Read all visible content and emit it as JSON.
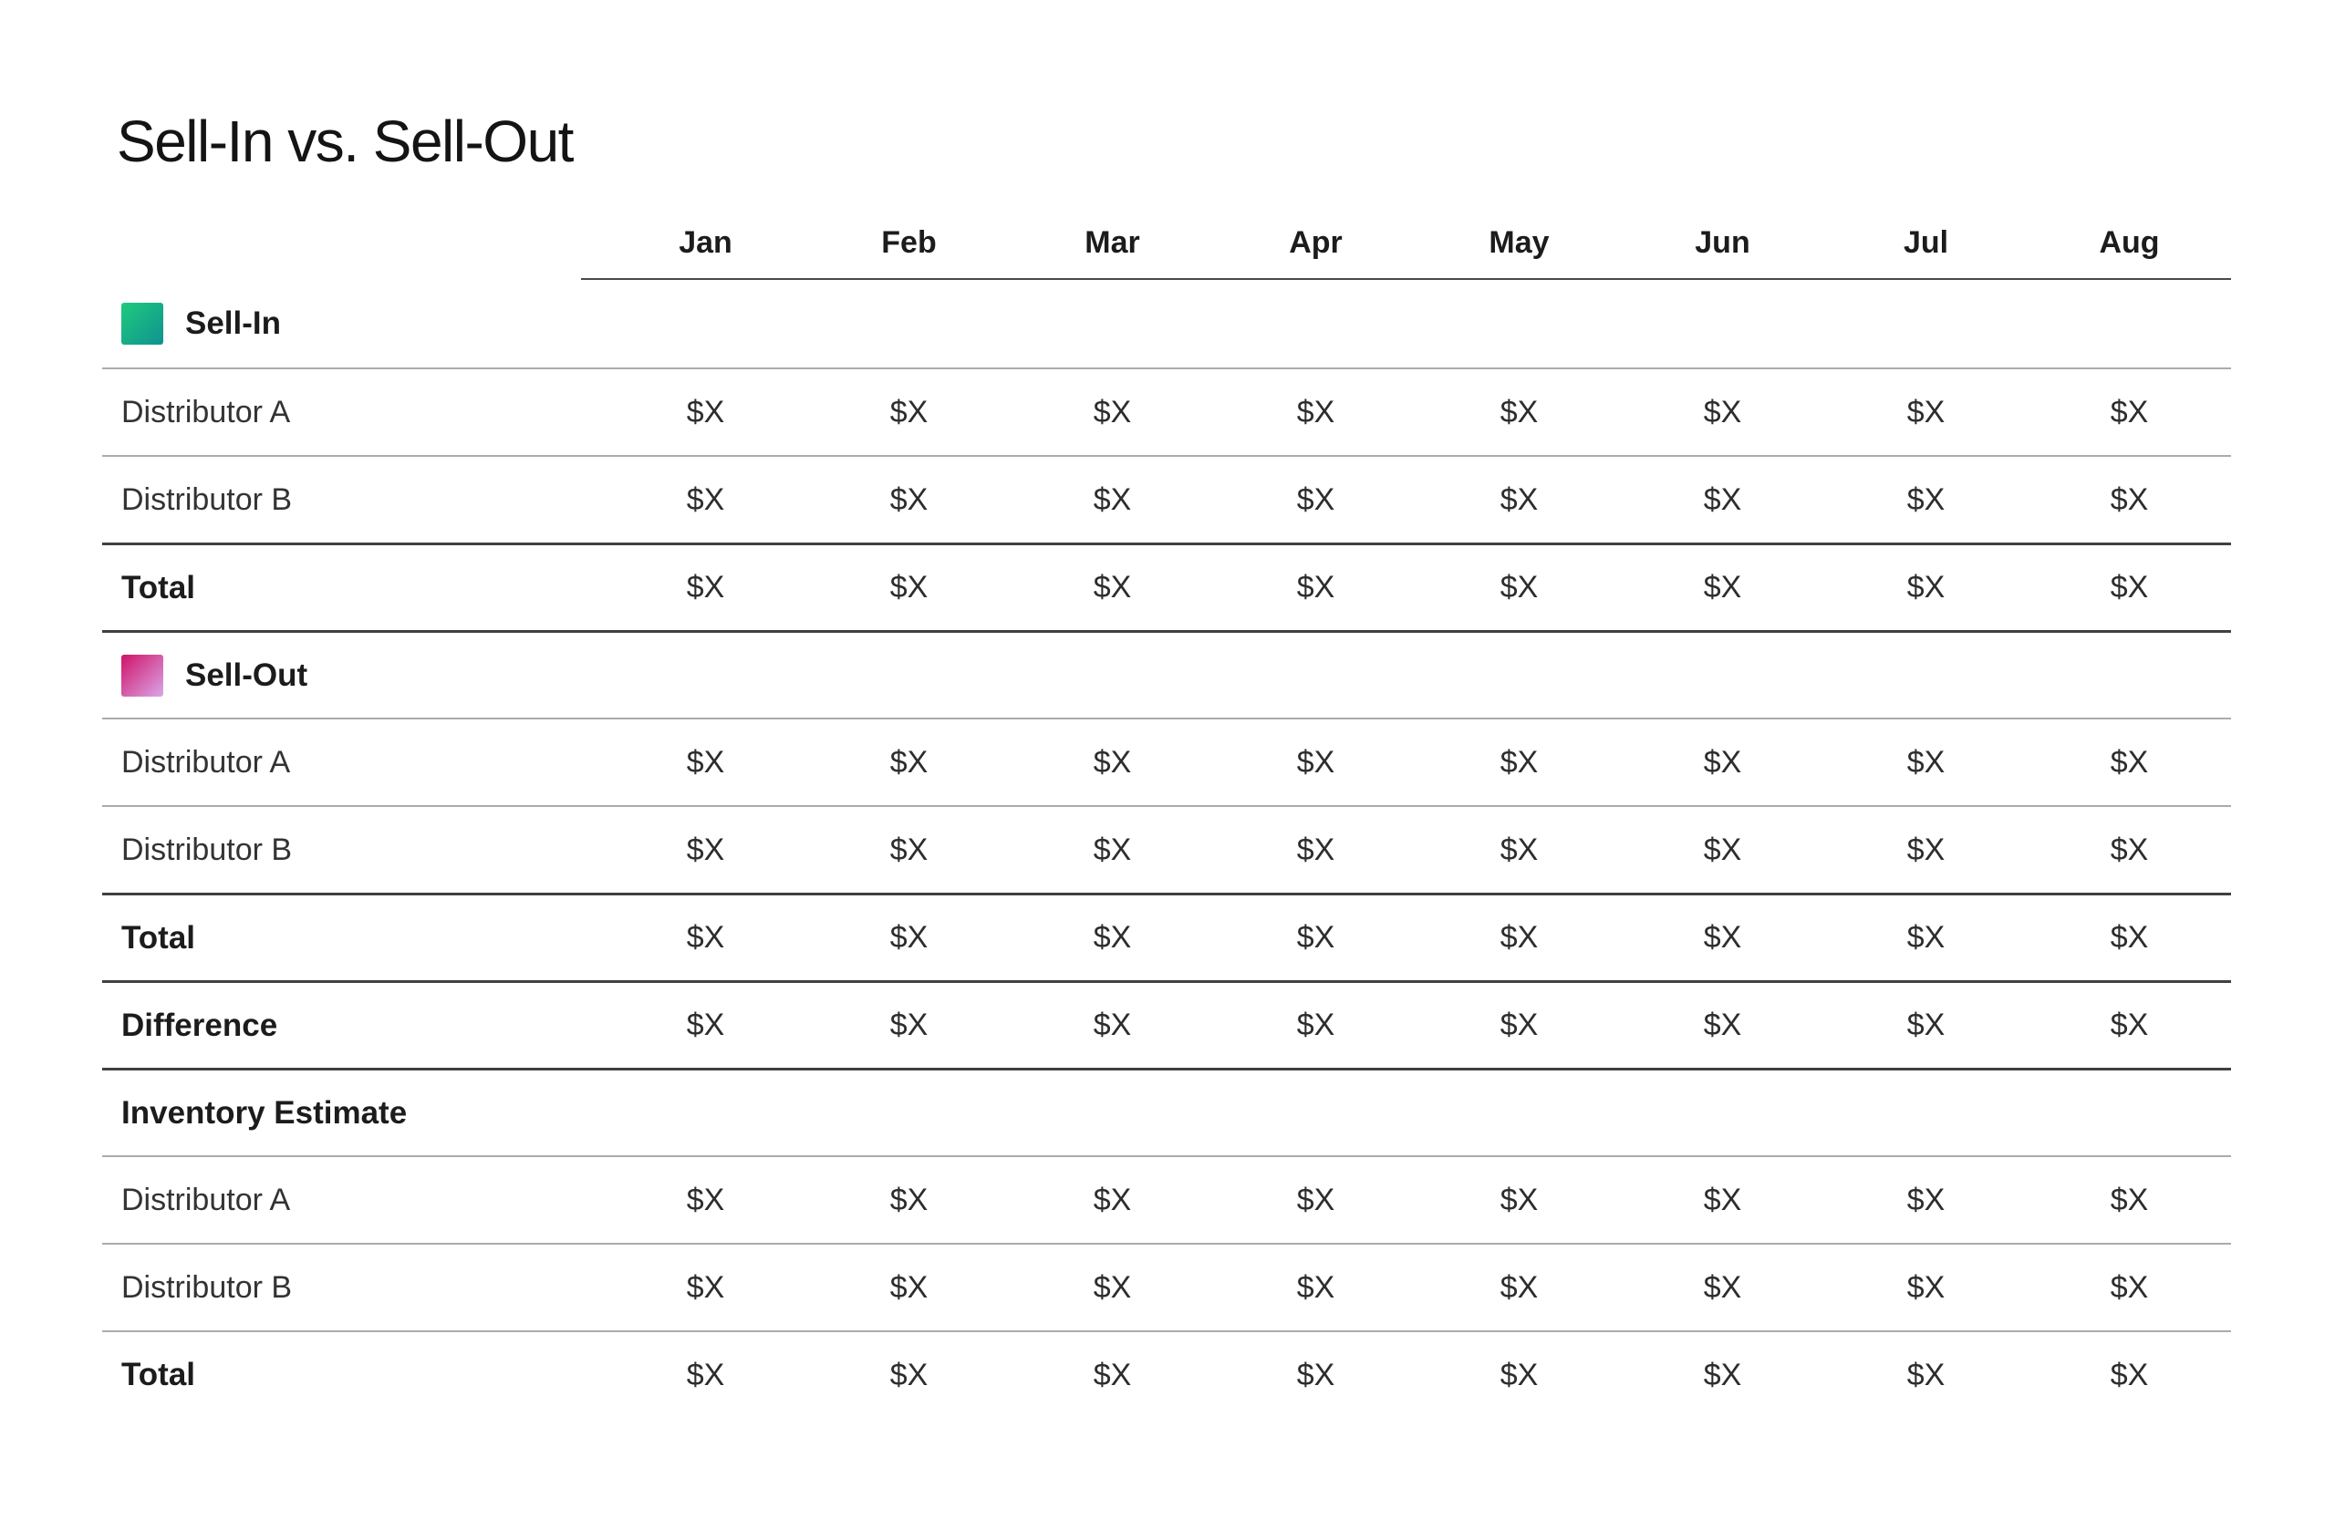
{
  "title": "Sell-In vs. Sell-Out",
  "months": [
    "Jan",
    "Feb",
    "Mar",
    "Apr",
    "May",
    "Jun",
    "Jul",
    "Aug"
  ],
  "value_placeholder": "$X",
  "colors": {
    "sell_in_gradient_start": "#1fca7e",
    "sell_in_gradient_end": "#0f9290",
    "sell_out_gradient_start": "#d01268",
    "sell_out_gradient_end": "#d9a7e8",
    "rule_light": "#ababab",
    "rule_dark": "#404040"
  },
  "table": {
    "rows": [
      {
        "kind": "legend",
        "swatch": "sell-in",
        "label": "Sell-In",
        "divider": "none",
        "values": [
          "",
          "",
          "",
          "",
          "",
          "",
          "",
          ""
        ]
      },
      {
        "kind": "data",
        "swatch": "",
        "label": "Distributor A",
        "divider": "light",
        "values": [
          "$X",
          "$X",
          "$X",
          "$X",
          "$X",
          "$X",
          "$X",
          "$X"
        ]
      },
      {
        "kind": "data",
        "swatch": "",
        "label": "Distributor B",
        "divider": "light",
        "values": [
          "$X",
          "$X",
          "$X",
          "$X",
          "$X",
          "$X",
          "$X",
          "$X"
        ]
      },
      {
        "kind": "total",
        "swatch": "",
        "label": "Total",
        "divider": "dark",
        "values": [
          "$X",
          "$X",
          "$X",
          "$X",
          "$X",
          "$X",
          "$X",
          "$X"
        ]
      },
      {
        "kind": "legend",
        "swatch": "sell-out",
        "label": "Sell-Out",
        "divider": "dark",
        "values": [
          "",
          "",
          "",
          "",
          "",
          "",
          "",
          ""
        ]
      },
      {
        "kind": "data",
        "swatch": "",
        "label": "Distributor A",
        "divider": "light",
        "values": [
          "$X",
          "$X",
          "$X",
          "$X",
          "$X",
          "$X",
          "$X",
          "$X"
        ]
      },
      {
        "kind": "data",
        "swatch": "",
        "label": "Distributor B",
        "divider": "light",
        "values": [
          "$X",
          "$X",
          "$X",
          "$X",
          "$X",
          "$X",
          "$X",
          "$X"
        ]
      },
      {
        "kind": "total",
        "swatch": "",
        "label": "Total",
        "divider": "dark",
        "values": [
          "$X",
          "$X",
          "$X",
          "$X",
          "$X",
          "$X",
          "$X",
          "$X"
        ]
      },
      {
        "kind": "total",
        "swatch": "",
        "label": "Difference",
        "divider": "dark",
        "values": [
          "$X",
          "$X",
          "$X",
          "$X",
          "$X",
          "$X",
          "$X",
          "$X"
        ]
      },
      {
        "kind": "section",
        "swatch": "",
        "label": "Inventory Estimate",
        "divider": "dark",
        "values": [
          "",
          "",
          "",
          "",
          "",
          "",
          "",
          ""
        ]
      },
      {
        "kind": "data",
        "swatch": "",
        "label": "Distributor A",
        "divider": "light",
        "values": [
          "$X",
          "$X",
          "$X",
          "$X",
          "$X",
          "$X",
          "$X",
          "$X"
        ]
      },
      {
        "kind": "data",
        "swatch": "",
        "label": "Distributor B",
        "divider": "light",
        "values": [
          "$X",
          "$X",
          "$X",
          "$X",
          "$X",
          "$X",
          "$X",
          "$X"
        ]
      },
      {
        "kind": "total",
        "swatch": "",
        "label": "Total",
        "divider": "light",
        "values": [
          "$X",
          "$X",
          "$X",
          "$X",
          "$X",
          "$X",
          "$X",
          "$X"
        ]
      }
    ]
  }
}
